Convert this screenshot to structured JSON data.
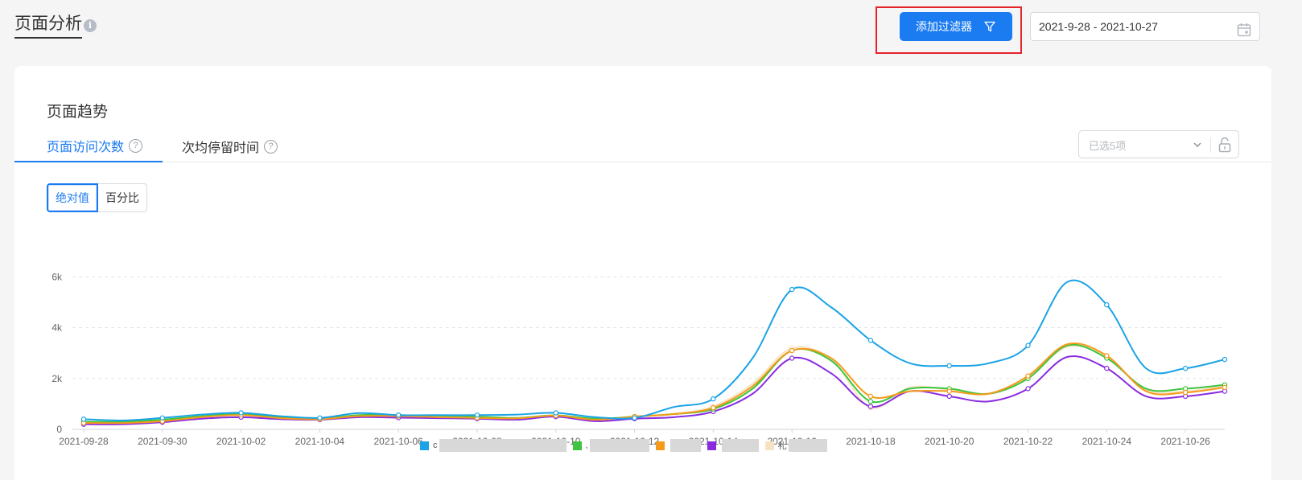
{
  "header": {
    "title": "页面分析",
    "info_icon_glyph": "i",
    "filter_button_label": "添加过滤器",
    "date_range": "2021-9-28 - 2021-10-27",
    "highlight_color": "#e5242a"
  },
  "card": {
    "section_title": "页面趋势",
    "tabs": [
      {
        "label": "页面访问次数",
        "active": true
      },
      {
        "label": "次均停留时间",
        "active": false
      }
    ],
    "help_glyph": "?",
    "select": {
      "placeholder": "已选5项"
    },
    "toggle": {
      "absolute": "绝对值",
      "percent": "百分比",
      "active": "absolute"
    }
  },
  "icons": {
    "info": "info-icon",
    "filter": "filter-icon",
    "calendar": "calendar-icon",
    "help": "help-icon",
    "chevron": "chevron-down-icon",
    "lock": "unlock-icon"
  },
  "colors": {
    "accent": "#1b7bf1",
    "series_blue": "#1aa3e6",
    "series_green": "#3ec43e",
    "series_orange": "#f59a1b",
    "series_purple": "#8a2be2",
    "series_cream": "#f7e3c4"
  },
  "chart_data": {
    "type": "line",
    "x": [
      "2021-09-28",
      "2021-09-29",
      "2021-09-30",
      "2021-10-01",
      "2021-10-02",
      "2021-10-03",
      "2021-10-04",
      "2021-10-05",
      "2021-10-06",
      "2021-10-07",
      "2021-10-08",
      "2021-10-09",
      "2021-10-10",
      "2021-10-11",
      "2021-10-12",
      "2021-10-13",
      "2021-10-14",
      "2021-10-15",
      "2021-10-16",
      "2021-10-17",
      "2021-10-18",
      "2021-10-19",
      "2021-10-20",
      "2021-10-21",
      "2021-10-22",
      "2021-10-23",
      "2021-10-24",
      "2021-10-25",
      "2021-10-26",
      "2021-10-27"
    ],
    "x_tick_labels": [
      "2021-09-28",
      "2021-09-30",
      "2021-10-02",
      "2021-10-04",
      "2021-10-06",
      "2021-10-08",
      "2021-10-10",
      "2021-10-12",
      "2021-10-14",
      "2021-10-16",
      "2021-10-18",
      "2021-10-20",
      "2021-10-22",
      "2021-10-24",
      "2021-10-26"
    ],
    "y_ticks": [
      0,
      2000,
      4000,
      6000
    ],
    "y_tick_labels": [
      "0",
      "2k",
      "4k",
      "6k"
    ],
    "ylim": [
      0,
      6200
    ],
    "grid": "horizontal dashed",
    "legend_position": "bottom-center",
    "series": [
      {
        "label": "c",
        "color": "#1aa3e6",
        "values": [
          400,
          350,
          450,
          580,
          650,
          520,
          450,
          640,
          560,
          560,
          560,
          580,
          650,
          480,
          450,
          880,
          1200,
          2800,
          5500,
          4800,
          3500,
          2600,
          2500,
          2600,
          3300,
          5800,
          4900,
          2400,
          2400,
          2750
        ]
      },
      {
        "label": ",",
        "color": "#3ec43e",
        "values": [
          300,
          300,
          380,
          520,
          600,
          480,
          420,
          560,
          560,
          500,
          500,
          450,
          550,
          420,
          500,
          600,
          800,
          1600,
          3100,
          2700,
          1100,
          1600,
          1600,
          1400,
          2000,
          3300,
          2800,
          1600,
          1600,
          1750
        ]
      },
      {
        "label": "",
        "color": "#f59a1b",
        "values": [
          250,
          250,
          320,
          480,
          560,
          440,
          400,
          520,
          520,
          480,
          450,
          430,
          540,
          380,
          500,
          600,
          850,
          1700,
          3100,
          2800,
          1300,
          1500,
          1500,
          1400,
          2100,
          3350,
          2900,
          1500,
          1450,
          1650
        ]
      },
      {
        "label": "",
        "color": "#8a2be2",
        "values": [
          200,
          200,
          280,
          420,
          480,
          400,
          380,
          480,
          460,
          440,
          420,
          380,
          500,
          320,
          420,
          480,
          700,
          1400,
          2800,
          2200,
          900,
          1500,
          1300,
          1100,
          1600,
          2850,
          2400,
          1300,
          1300,
          1500
        ]
      },
      {
        "label": "礼",
        "color": "#f7e3c4",
        "values": [
          280,
          270,
          350,
          500,
          580,
          460,
          410,
          540,
          540,
          490,
          470,
          440,
          560,
          400,
          510,
          620,
          900,
          1800,
          3200,
          2750,
          850,
          1650,
          1550,
          1420,
          2050,
          3250,
          2850,
          1550,
          1500,
          1700
        ]
      }
    ]
  }
}
